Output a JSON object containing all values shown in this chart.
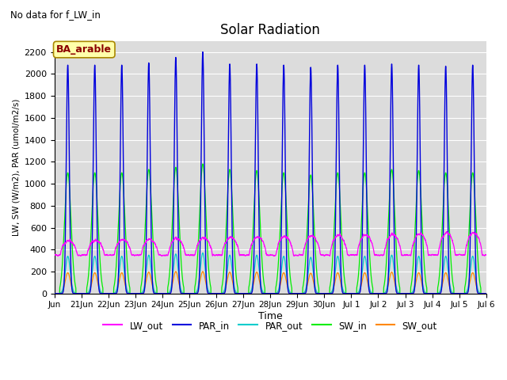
{
  "title": "Solar Radiation",
  "note": "No data for f_LW_in",
  "ylabel": "LW, SW (W/m2), PAR (umol/m2/s)",
  "xlabel": "Time",
  "legend_label": "BA_arable",
  "ylim": [
    0,
    2300
  ],
  "yticks": [
    0,
    200,
    400,
    600,
    800,
    1000,
    1200,
    1400,
    1600,
    1800,
    2000,
    2200
  ],
  "bg_color": "#dcdcdc",
  "series_colors": {
    "LW_out": "#ff00ff",
    "PAR_in": "#0000dd",
    "PAR_out": "#00cccc",
    "SW_in": "#00ee00",
    "SW_out": "#ff8800"
  },
  "n_days": 16,
  "points_per_day": 288,
  "par_in_peaks": [
    2080,
    2080,
    2080,
    2100,
    2150,
    2200,
    2090,
    2090,
    2080,
    2060,
    2080,
    2080,
    2090,
    2080,
    2070,
    2080
  ],
  "sw_in_peaks": [
    1100,
    1100,
    1100,
    1130,
    1150,
    1180,
    1130,
    1120,
    1100,
    1080,
    1100,
    1100,
    1130,
    1120,
    1100,
    1100
  ],
  "par_out_peaks": [
    340,
    340,
    340,
    350,
    360,
    370,
    350,
    350,
    340,
    330,
    340,
    340,
    350,
    340,
    340,
    340
  ],
  "sw_out_peaks": [
    190,
    190,
    190,
    195,
    200,
    200,
    195,
    195,
    190,
    185,
    190,
    190,
    195,
    190,
    190,
    190
  ],
  "lw_base": 350,
  "lw_day_peak_base": 480,
  "lw_day_peak_increment": 5
}
